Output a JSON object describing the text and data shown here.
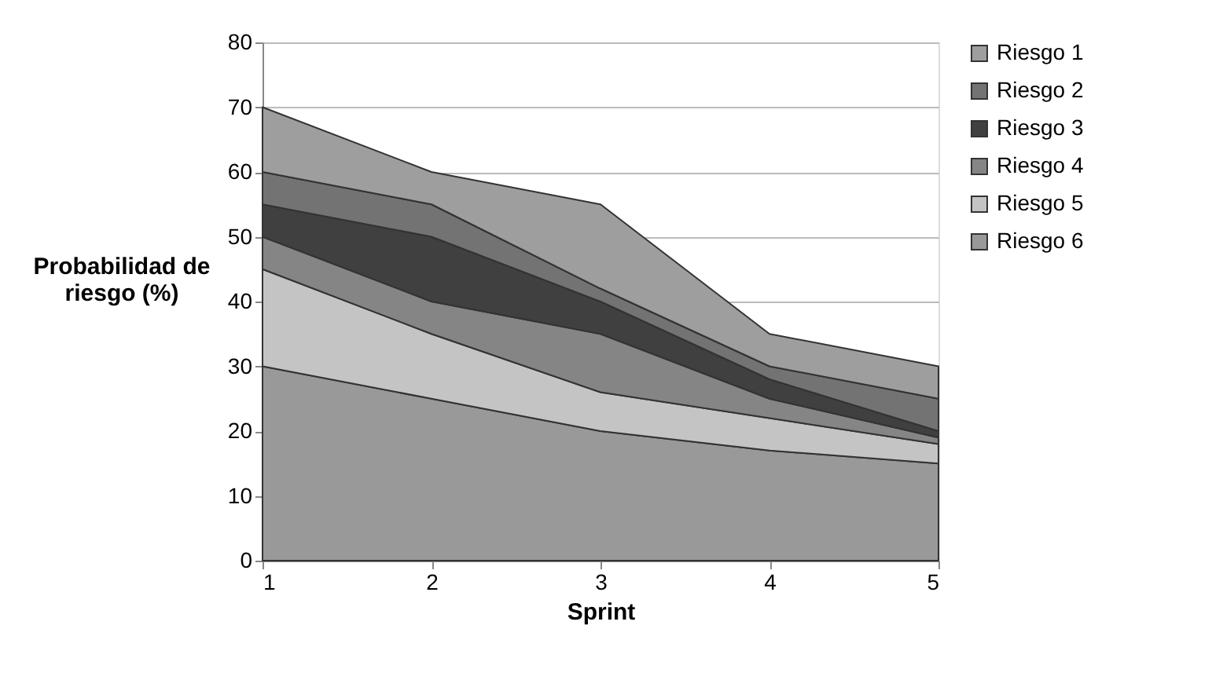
{
  "chart_data": {
    "type": "area",
    "stacked": true,
    "xlabel": "Sprint",
    "ylabel": "Probabilidad de riesgo (%)",
    "x": [
      1,
      2,
      3,
      4,
      5
    ],
    "xlim": [
      1,
      5
    ],
    "xticks": [
      1,
      2,
      3,
      4,
      5
    ],
    "ylim": [
      0,
      80
    ],
    "yticks": [
      0,
      10,
      20,
      30,
      40,
      50,
      60,
      70,
      80
    ],
    "grid": "y",
    "legend": "right",
    "series": [
      {
        "name": "Riesgo 6",
        "color": "#999999",
        "values": [
          30,
          25,
          20,
          17,
          15
        ]
      },
      {
        "name": "Riesgo 5",
        "color": "#c4c4c4",
        "values": [
          15,
          10,
          6,
          5,
          3
        ]
      },
      {
        "name": "Riesgo 4",
        "color": "#858585",
        "values": [
          5,
          5,
          9,
          3,
          1
        ]
      },
      {
        "name": "Riesgo 3",
        "color": "#404040",
        "values": [
          5,
          10,
          5,
          3,
          1
        ]
      },
      {
        "name": "Riesgo 2",
        "color": "#737373",
        "values": [
          5,
          5,
          2,
          2,
          5
        ]
      },
      {
        "name": "Riesgo 1",
        "color": "#9e9e9e",
        "values": [
          10,
          5,
          13,
          5,
          5
        ]
      }
    ]
  }
}
